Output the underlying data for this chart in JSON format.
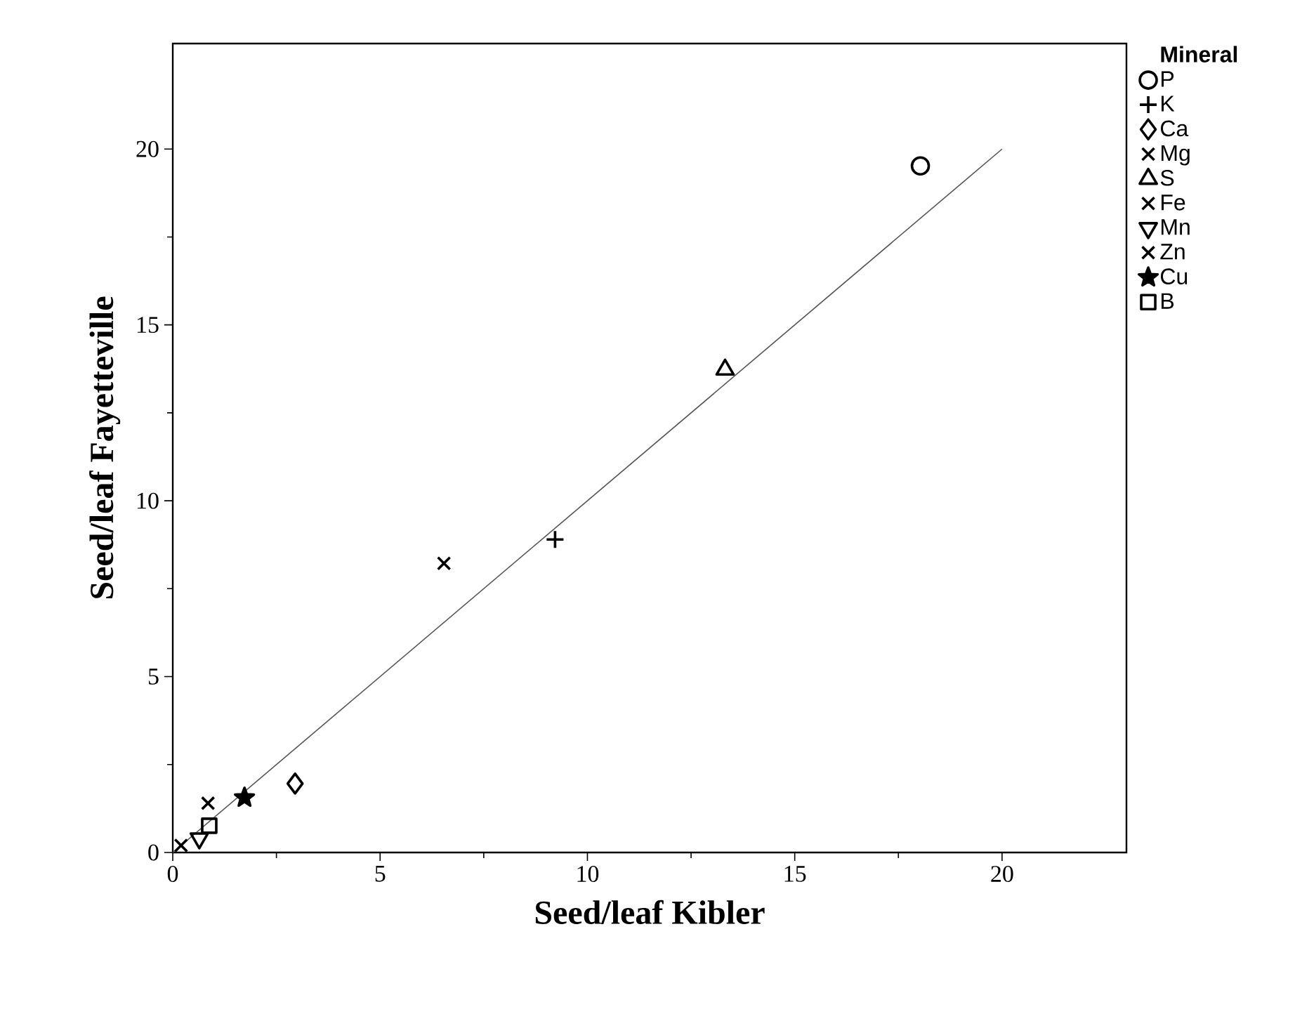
{
  "chart_data": {
    "type": "scatter",
    "xlabel": "Seed/leaf Kibler",
    "ylabel": "Seed/leaf Fayetteville",
    "legend_title": "Mineral",
    "legend": "right",
    "xlim": [
      0,
      23
    ],
    "ylim": [
      0,
      23
    ],
    "xticks": [
      0,
      5,
      10,
      15,
      20
    ],
    "yticks": [
      0,
      5,
      10,
      15,
      20
    ],
    "grid": false,
    "series": [
      {
        "name": "P",
        "color": "#000000",
        "marker": "circle",
        "x": [
          18.03
        ],
        "values": [
          19.52
        ]
      },
      {
        "name": "K",
        "color": "#000000",
        "marker": "plus",
        "x": [
          9.22
        ],
        "values": [
          8.9
        ]
      },
      {
        "name": "Ca",
        "color": "#000000",
        "marker": "diamond",
        "x": [
          2.95
        ],
        "values": [
          1.96
        ]
      },
      {
        "name": "Mg",
        "color": "#000000",
        "marker": "cross",
        "x": [
          6.54
        ],
        "values": [
          8.22
        ]
      },
      {
        "name": "S",
        "color": "#000000",
        "marker": "triangle",
        "x": [
          13.32
        ],
        "values": [
          13.73
        ]
      },
      {
        "name": "Fe",
        "color": "#000000",
        "marker": "cross",
        "x": [
          0.2
        ],
        "values": [
          0.2
        ]
      },
      {
        "name": "Mn",
        "color": "#000000",
        "marker": "triangle-down",
        "x": [
          0.64
        ],
        "values": [
          0.4
        ]
      },
      {
        "name": "Zn",
        "color": "#000000",
        "marker": "cross",
        "x": [
          0.85
        ],
        "values": [
          1.4
        ]
      },
      {
        "name": "Cu",
        "color": "#000000",
        "marker": "star",
        "x": [
          1.73
        ],
        "values": [
          1.56
        ]
      },
      {
        "name": "B",
        "color": "#000000",
        "marker": "square",
        "x": [
          0.88
        ],
        "values": [
          0.76
        ]
      },
      {
        "type": "line",
        "color": "#555555",
        "marker": "none",
        "x": [
          0,
          20
        ],
        "values": [
          0,
          20
        ]
      }
    ]
  }
}
